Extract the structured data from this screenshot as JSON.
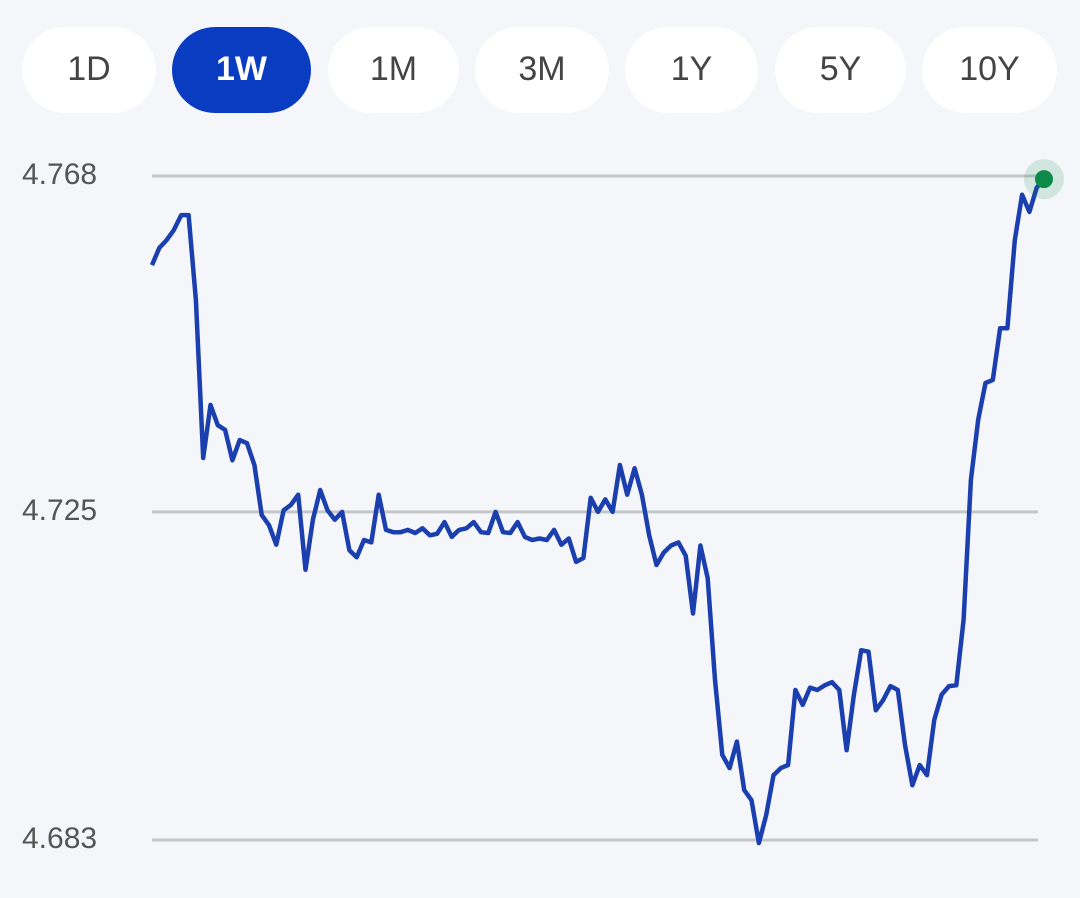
{
  "tabs": {
    "items": [
      "1D",
      "1W",
      "1M",
      "3M",
      "1Y",
      "5Y",
      "10Y"
    ],
    "selected": 1
  },
  "chart_data": {
    "type": "line",
    "ylim": [
      4.683,
      4.768
    ],
    "yticks": [
      4.683,
      4.725,
      4.768
    ],
    "grid": true,
    "color": "#1b3fae",
    "end_marker_color": "#0b8a4a",
    "values": [
      4.7566,
      4.7588,
      4.7598,
      4.7611,
      4.763,
      4.763,
      4.7521,
      4.7319,
      4.7387,
      4.7361,
      4.7355,
      4.7316,
      4.7342,
      4.7338,
      4.731,
      4.7246,
      4.7233,
      4.7208,
      4.7252,
      4.7259,
      4.7272,
      4.7176,
      4.724,
      4.7278,
      4.7252,
      4.724,
      4.725,
      4.7201,
      4.7192,
      4.7214,
      4.7211,
      4.7272,
      4.7227,
      4.7224,
      4.7224,
      4.7227,
      4.7223,
      4.7229,
      4.722,
      4.7222,
      4.7237,
      4.7218,
      4.7227,
      4.7229,
      4.7237,
      4.7224,
      4.7223,
      4.725,
      4.7224,
      4.7223,
      4.7237,
      4.7218,
      4.7214,
      4.7216,
      4.7214,
      4.7227,
      4.7208,
      4.7216,
      4.7186,
      4.7191,
      4.7268,
      4.725,
      4.7266,
      4.725,
      4.731,
      4.7272,
      4.7306,
      4.7272,
      4.722,
      4.7182,
      4.7198,
      4.7207,
      4.7211,
      4.7194,
      4.712,
      4.7207,
      4.7165,
      4.7035,
      4.6939,
      4.6922,
      4.6956,
      4.6894,
      4.6881,
      4.6826,
      4.6862,
      4.6913,
      4.6922,
      4.6926,
      4.7022,
      4.7003,
      4.7025,
      4.7022,
      4.7028,
      4.7032,
      4.7022,
      4.6945,
      4.7016,
      4.7073,
      4.7071,
      4.6996,
      4.7009,
      4.7027,
      4.7022,
      4.6951,
      4.69,
      4.6926,
      4.6913,
      4.6984,
      4.7016,
      4.7027,
      4.7028,
      4.7112,
      4.7291,
      4.7368,
      4.7415,
      4.7419,
      4.7485,
      4.7485,
      4.7598,
      4.7656,
      4.7634,
      4.7665,
      4.7676
    ]
  }
}
